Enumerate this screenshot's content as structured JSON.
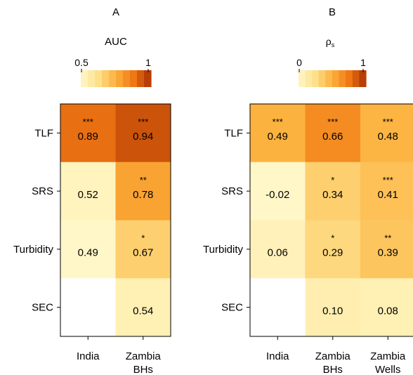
{
  "chart_data": [
    {
      "type": "heatmap",
      "panel_label": "A",
      "title": "AUC",
      "colorbar": {
        "min": 0.5,
        "max": 1,
        "tick_labels": [
          "0.5",
          "1"
        ]
      },
      "columns": [
        [
          "India"
        ],
        [
          "Zambia",
          "BHs"
        ]
      ],
      "rows": [
        "TLF",
        "SRS",
        "Turbidity",
        "SEC"
      ],
      "values": [
        [
          0.89,
          0.94
        ],
        [
          0.52,
          0.78
        ],
        [
          0.49,
          0.67
        ],
        [
          null,
          0.54
        ]
      ],
      "labels": [
        [
          "0.89",
          "0.94"
        ],
        [
          "0.52",
          "0.78"
        ],
        [
          "0.49",
          "0.67"
        ],
        [
          "",
          "0.54"
        ]
      ],
      "significance": [
        [
          "***",
          "***"
        ],
        [
          "",
          "**"
        ],
        [
          "",
          "*"
        ],
        [
          "",
          ""
        ]
      ]
    },
    {
      "type": "heatmap",
      "panel_label": "B",
      "title": "ρ",
      "title_subscript": "s",
      "colorbar": {
        "min": 0,
        "max": 1,
        "tick_labels": [
          "0",
          "1"
        ]
      },
      "columns": [
        [
          "India"
        ],
        [
          "Zambia",
          "BHs"
        ],
        [
          "Zambia",
          "Wells"
        ]
      ],
      "rows": [
        "TLF",
        "SRS",
        "Turbidity",
        "SEC"
      ],
      "values": [
        [
          0.49,
          0.66,
          0.48
        ],
        [
          -0.02,
          0.34,
          0.41
        ],
        [
          0.06,
          0.29,
          0.39
        ],
        [
          null,
          0.1,
          0.08
        ]
      ],
      "labels": [
        [
          "0.49",
          "0.66",
          "0.48"
        ],
        [
          "-0.02",
          "0.34",
          "0.41"
        ],
        [
          "0.06",
          "0.29",
          "0.39"
        ],
        [
          "",
          "0.10",
          "0.08"
        ]
      ],
      "significance": [
        [
          "***",
          "***",
          "***"
        ],
        [
          "",
          "*",
          "***"
        ],
        [
          "",
          "*",
          "**"
        ],
        [
          "",
          "",
          ""
        ]
      ]
    }
  ]
}
